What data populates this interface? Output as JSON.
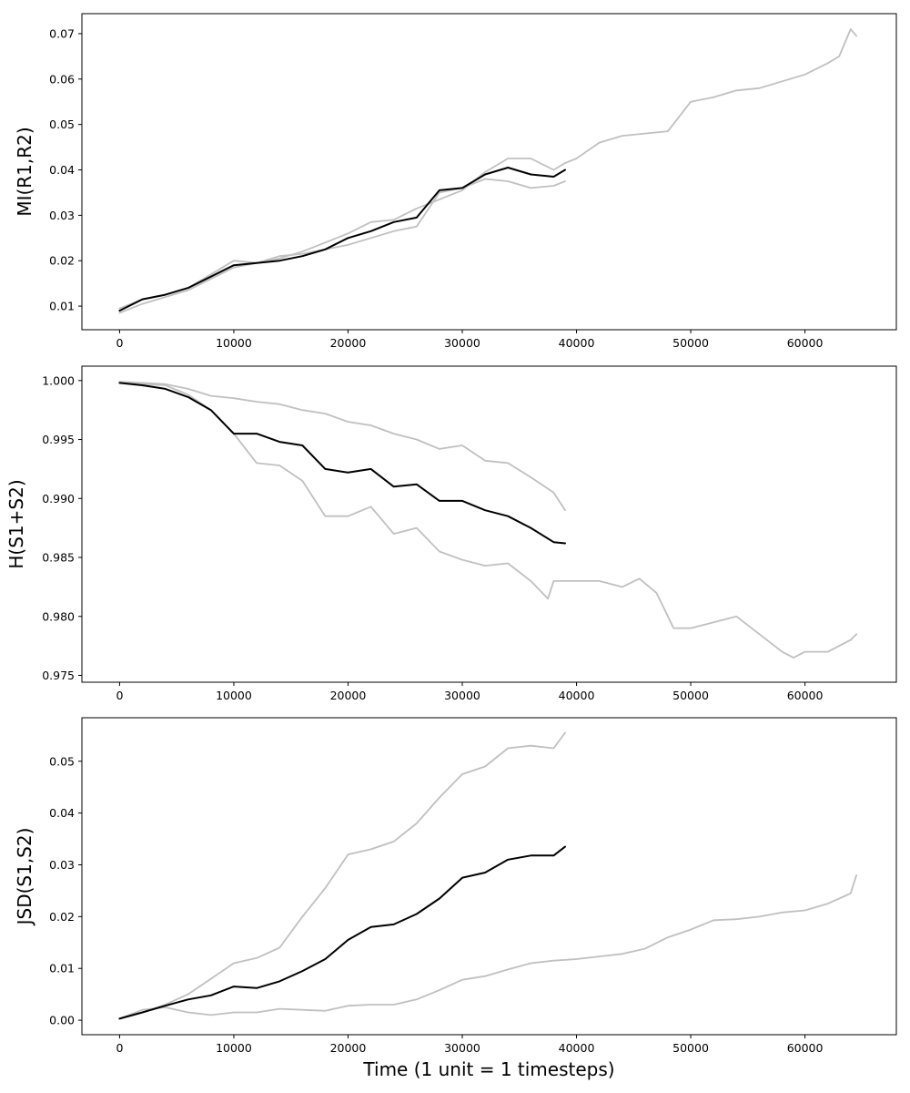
{
  "colors": {
    "mean": "#000000",
    "band": "#c0c0c0",
    "frame": "#000000",
    "background": "#ffffff"
  },
  "chart_data": [
    {
      "type": "line",
      "title": "",
      "xlabel": "",
      "ylabel": "MI(R1,R2)",
      "xlim": [
        -3300,
        68000
      ],
      "ylim": [
        0.0048,
        0.0744
      ],
      "xticks": [
        0,
        10000,
        20000,
        30000,
        40000,
        50000,
        60000
      ],
      "xtick_labels": [
        "0",
        "10000",
        "20000",
        "30000",
        "40000",
        "50000",
        "60000"
      ],
      "yticks": [
        0.01,
        0.02,
        0.03,
        0.04,
        0.05,
        0.06,
        0.07
      ],
      "ytick_labels": [
        "0.01",
        "0.02",
        "0.03",
        "0.04",
        "0.05",
        "0.06",
        "0.07"
      ],
      "grid": false,
      "series": [
        {
          "role": "upper",
          "color": "#c0c0c0",
          "x": [
            0,
            2000,
            4000,
            6000,
            8000,
            10000,
            12000,
            14000,
            16000,
            18000,
            20000,
            22000,
            24000,
            26000,
            28000,
            30000,
            32000,
            34000,
            36000,
            38000,
            39000,
            40000,
            42000,
            44000,
            46000,
            48000,
            50000,
            52000,
            54000,
            56000,
            58000,
            60000,
            62000,
            63000,
            64000,
            64500
          ],
          "y": [
            0.0095,
            0.0115,
            0.0125,
            0.014,
            0.017,
            0.02,
            0.0195,
            0.0205,
            0.022,
            0.024,
            0.026,
            0.0285,
            0.029,
            0.0315,
            0.0335,
            0.0355,
            0.0395,
            0.0425,
            0.0425,
            0.04,
            0.0415,
            0.0425,
            0.046,
            0.0475,
            0.048,
            0.0485,
            0.055,
            0.056,
            0.0575,
            0.058,
            0.0595,
            0.061,
            0.0635,
            0.065,
            0.071,
            0.0695
          ]
        },
        {
          "role": "lower",
          "color": "#c0c0c0",
          "x": [
            0,
            2000,
            4000,
            6000,
            8000,
            10000,
            12000,
            14000,
            16000,
            18000,
            20000,
            22000,
            24000,
            26000,
            28000,
            30000,
            32000,
            34000,
            36000,
            38000,
            39000
          ],
          "y": [
            0.0085,
            0.0105,
            0.012,
            0.0135,
            0.016,
            0.0185,
            0.0195,
            0.021,
            0.0215,
            0.0225,
            0.0235,
            0.025,
            0.0265,
            0.0275,
            0.035,
            0.036,
            0.038,
            0.0375,
            0.036,
            0.0365,
            0.0375
          ]
        },
        {
          "role": "mean",
          "color": "#000000",
          "x": [
            0,
            2000,
            4000,
            6000,
            8000,
            10000,
            12000,
            14000,
            16000,
            18000,
            20000,
            22000,
            24000,
            26000,
            28000,
            30000,
            32000,
            34000,
            36000,
            38000,
            39000
          ],
          "y": [
            0.009,
            0.0115,
            0.0125,
            0.014,
            0.0165,
            0.019,
            0.0195,
            0.02,
            0.021,
            0.0225,
            0.025,
            0.0265,
            0.0285,
            0.0295,
            0.0355,
            0.036,
            0.039,
            0.0405,
            0.039,
            0.0385,
            0.04
          ]
        }
      ]
    },
    {
      "type": "line",
      "title": "",
      "xlabel": "",
      "ylabel": "H(S1+S2)",
      "xlim": [
        -3300,
        68000
      ],
      "ylim": [
        0.97442,
        1.00122
      ],
      "xticks": [
        0,
        10000,
        20000,
        30000,
        40000,
        50000,
        60000
      ],
      "xtick_labels": [
        "0",
        "10000",
        "20000",
        "30000",
        "40000",
        "50000",
        "60000"
      ],
      "yticks": [
        0.975,
        0.98,
        0.985,
        0.99,
        0.995,
        1.0
      ],
      "ytick_labels": [
        "0.975",
        "0.980",
        "0.985",
        "0.990",
        "0.995",
        "1.000"
      ],
      "grid": false,
      "series": [
        {
          "role": "upper",
          "color": "#c0c0c0",
          "x": [
            0,
            2000,
            4000,
            6000,
            8000,
            10000,
            12000,
            14000,
            16000,
            18000,
            20000,
            22000,
            24000,
            26000,
            28000,
            30000,
            32000,
            34000,
            36000,
            38000,
            39000
          ],
          "y": [
            0.9999,
            0.9998,
            0.9997,
            0.9993,
            0.9987,
            0.9985,
            0.9982,
            0.998,
            0.9975,
            0.9972,
            0.9965,
            0.9962,
            0.9955,
            0.995,
            0.9942,
            0.9945,
            0.9932,
            0.993,
            0.9918,
            0.9905,
            0.989
          ]
        },
        {
          "role": "lower",
          "color": "#c0c0c0",
          "x": [
            0,
            2000,
            4000,
            6000,
            8000,
            10000,
            12000,
            14000,
            16000,
            18000,
            20000,
            22000,
            24000,
            26000,
            28000,
            30000,
            32000,
            34000,
            36000,
            37500,
            38000,
            40000,
            42000,
            44000,
            45500,
            47000,
            48500,
            50000,
            52000,
            54000,
            56000,
            58000,
            59000,
            60000,
            62000,
            64000,
            64500
          ],
          "y": [
            0.9998,
            0.9997,
            0.9996,
            0.9988,
            0.9975,
            0.9955,
            0.993,
            0.9928,
            0.9915,
            0.9885,
            0.9885,
            0.9893,
            0.987,
            0.9875,
            0.9855,
            0.9848,
            0.9843,
            0.9845,
            0.983,
            0.9815,
            0.983,
            0.983,
            0.983,
            0.9825,
            0.9832,
            0.982,
            0.979,
            0.979,
            0.9795,
            0.98,
            0.9785,
            0.977,
            0.9765,
            0.977,
            0.977,
            0.978,
            0.9785
          ]
        },
        {
          "role": "mean",
          "color": "#000000",
          "x": [
            0,
            2000,
            4000,
            6000,
            8000,
            10000,
            12000,
            14000,
            16000,
            18000,
            20000,
            22000,
            24000,
            26000,
            28000,
            30000,
            32000,
            34000,
            36000,
            38000,
            39000
          ],
          "y": [
            0.9998,
            0.9996,
            0.9993,
            0.9986,
            0.9975,
            0.9955,
            0.9955,
            0.9948,
            0.9945,
            0.9925,
            0.9922,
            0.9925,
            0.991,
            0.9912,
            0.9898,
            0.9898,
            0.989,
            0.9885,
            0.9875,
            0.9863,
            0.9862
          ]
        }
      ]
    },
    {
      "type": "line",
      "title": "",
      "xlabel": "Time (1 unit = 1 timesteps)",
      "ylabel": "JSD(S1,S2)",
      "xlim": [
        -3300,
        68000
      ],
      "ylim": [
        -0.0028,
        0.0584
      ],
      "xticks": [
        0,
        10000,
        20000,
        30000,
        40000,
        50000,
        60000
      ],
      "xtick_labels": [
        "0",
        "10000",
        "20000",
        "30000",
        "40000",
        "50000",
        "60000"
      ],
      "yticks": [
        0.0,
        0.01,
        0.02,
        0.03,
        0.04,
        0.05
      ],
      "ytick_labels": [
        "0.00",
        "0.01",
        "0.02",
        "0.03",
        "0.04",
        "0.05"
      ],
      "grid": false,
      "series": [
        {
          "role": "upper",
          "color": "#c0c0c0",
          "x": [
            0,
            2000,
            4000,
            6000,
            8000,
            10000,
            12000,
            14000,
            16000,
            18000,
            20000,
            22000,
            24000,
            26000,
            28000,
            30000,
            32000,
            34000,
            36000,
            38000,
            39000
          ],
          "y": [
            0.0003,
            0.0015,
            0.003,
            0.005,
            0.008,
            0.011,
            0.012,
            0.014,
            0.02,
            0.0255,
            0.032,
            0.033,
            0.0345,
            0.038,
            0.043,
            0.0475,
            0.049,
            0.0525,
            0.053,
            0.0525,
            0.0555
          ]
        },
        {
          "role": "lower",
          "color": "#c0c0c0",
          "x": [
            0,
            2000,
            4000,
            6000,
            8000,
            10000,
            12000,
            14000,
            16000,
            18000,
            20000,
            22000,
            24000,
            26000,
            28000,
            30000,
            32000,
            34000,
            36000,
            38000,
            40000,
            42000,
            44000,
            46000,
            48000,
            50000,
            52000,
            54000,
            56000,
            58000,
            60000,
            62000,
            63000,
            64000,
            64500
          ],
          "y": [
            0.0003,
            0.002,
            0.0025,
            0.0015,
            0.001,
            0.0015,
            0.0015,
            0.0022,
            0.002,
            0.0018,
            0.0028,
            0.003,
            0.003,
            0.004,
            0.0058,
            0.0078,
            0.0085,
            0.0098,
            0.011,
            0.0115,
            0.0118,
            0.0123,
            0.0128,
            0.0138,
            0.016,
            0.0175,
            0.0193,
            0.0195,
            0.02,
            0.0208,
            0.0212,
            0.0225,
            0.0235,
            0.0245,
            0.028
          ]
        },
        {
          "role": "mean",
          "color": "#000000",
          "x": [
            0,
            2000,
            4000,
            6000,
            8000,
            10000,
            12000,
            14000,
            16000,
            18000,
            20000,
            22000,
            24000,
            26000,
            28000,
            30000,
            32000,
            34000,
            36000,
            38000,
            39000
          ],
          "y": [
            0.0003,
            0.0015,
            0.0028,
            0.004,
            0.0048,
            0.0065,
            0.0062,
            0.0075,
            0.0095,
            0.0118,
            0.0155,
            0.018,
            0.0185,
            0.0205,
            0.0235,
            0.0275,
            0.0285,
            0.031,
            0.0318,
            0.0318,
            0.0335
          ]
        }
      ]
    }
  ]
}
